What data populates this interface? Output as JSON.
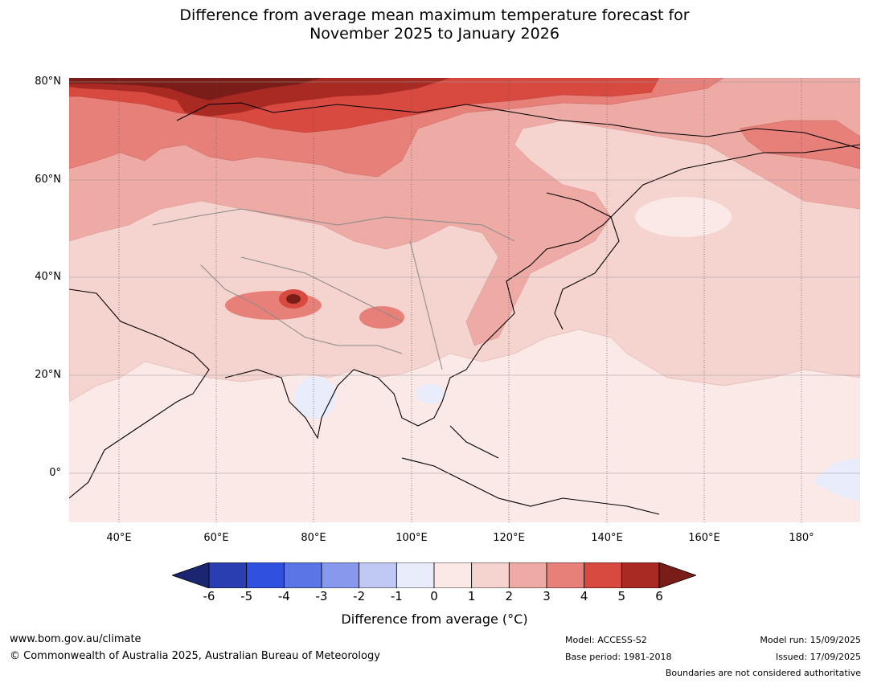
{
  "title": {
    "line1": "Difference from average mean maximum temperature forecast for",
    "line2": "November 2025 to January 2026"
  },
  "map": {
    "lat_labels": [
      "80°N",
      "60°N",
      "40°N",
      "20°N",
      "0°"
    ],
    "lon_labels": [
      "40°E",
      "60°E",
      "80°E",
      "100°E",
      "120°E",
      "140°E",
      "160°E",
      "180°"
    ],
    "lon_range": [
      30,
      192
    ],
    "lat_range": [
      -10,
      80
    ]
  },
  "colorbar": {
    "ticks": [
      "-6",
      "-5",
      "-4",
      "-3",
      "-2",
      "-1",
      "0",
      "1",
      "2",
      "3",
      "4",
      "5",
      "6"
    ],
    "colors": [
      "#1a2670",
      "#2a3eb1",
      "#3050e0",
      "#5b74e6",
      "#8898ec",
      "#c0c8f4",
      "#e8ecfb",
      "#fbe9e7",
      "#f5d3cf",
      "#eeaba6",
      "#e8807a",
      "#d84a40",
      "#a82a22",
      "#7a1d18"
    ],
    "label": "Difference from average (°C)"
  },
  "footer": {
    "url": "www.bom.gov.au/climate",
    "copyright": "© Commonwealth of Australia 2025, Australian Bureau of Meteorology",
    "model": "Model: ACCESS-S2",
    "base_period": "Base period: 1981-2018",
    "model_run": "Model run: 15/09/2025",
    "issued": "Issued: 17/09/2025",
    "disclaimer": "Boundaries are not considered authoritative"
  }
}
